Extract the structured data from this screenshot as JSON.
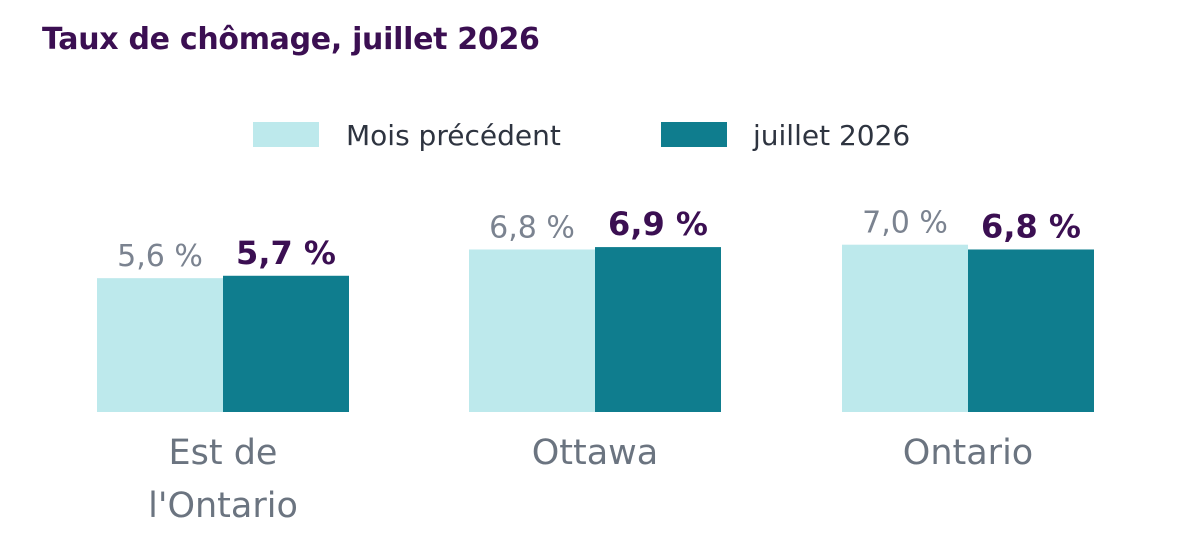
{
  "chart_data": {
    "type": "bar",
    "title": "Taux de chômage, juillet 2026",
    "categories": [
      "Est de l'Ontario",
      "Ottawa",
      "Ontario"
    ],
    "category_lines": [
      [
        "Est de",
        "l'Ontario"
      ],
      [
        "Ottawa"
      ],
      [
        "Ontario"
      ]
    ],
    "series": [
      {
        "name": "Mois précédent",
        "values": [
          5.6,
          6.8,
          7.0
        ],
        "labels": [
          "5,6 %",
          "6,8 %",
          "7,0 %"
        ],
        "color": "#bde9ec"
      },
      {
        "name": "juillet 2026",
        "values": [
          5.7,
          6.9,
          6.8
        ],
        "labels": [
          "5,7 %",
          "6,9 %",
          "6,8 %"
        ],
        "color": "#0f7d8e"
      }
    ],
    "legend_position": "top",
    "grid": false,
    "xlabel": "",
    "ylabel": ""
  }
}
